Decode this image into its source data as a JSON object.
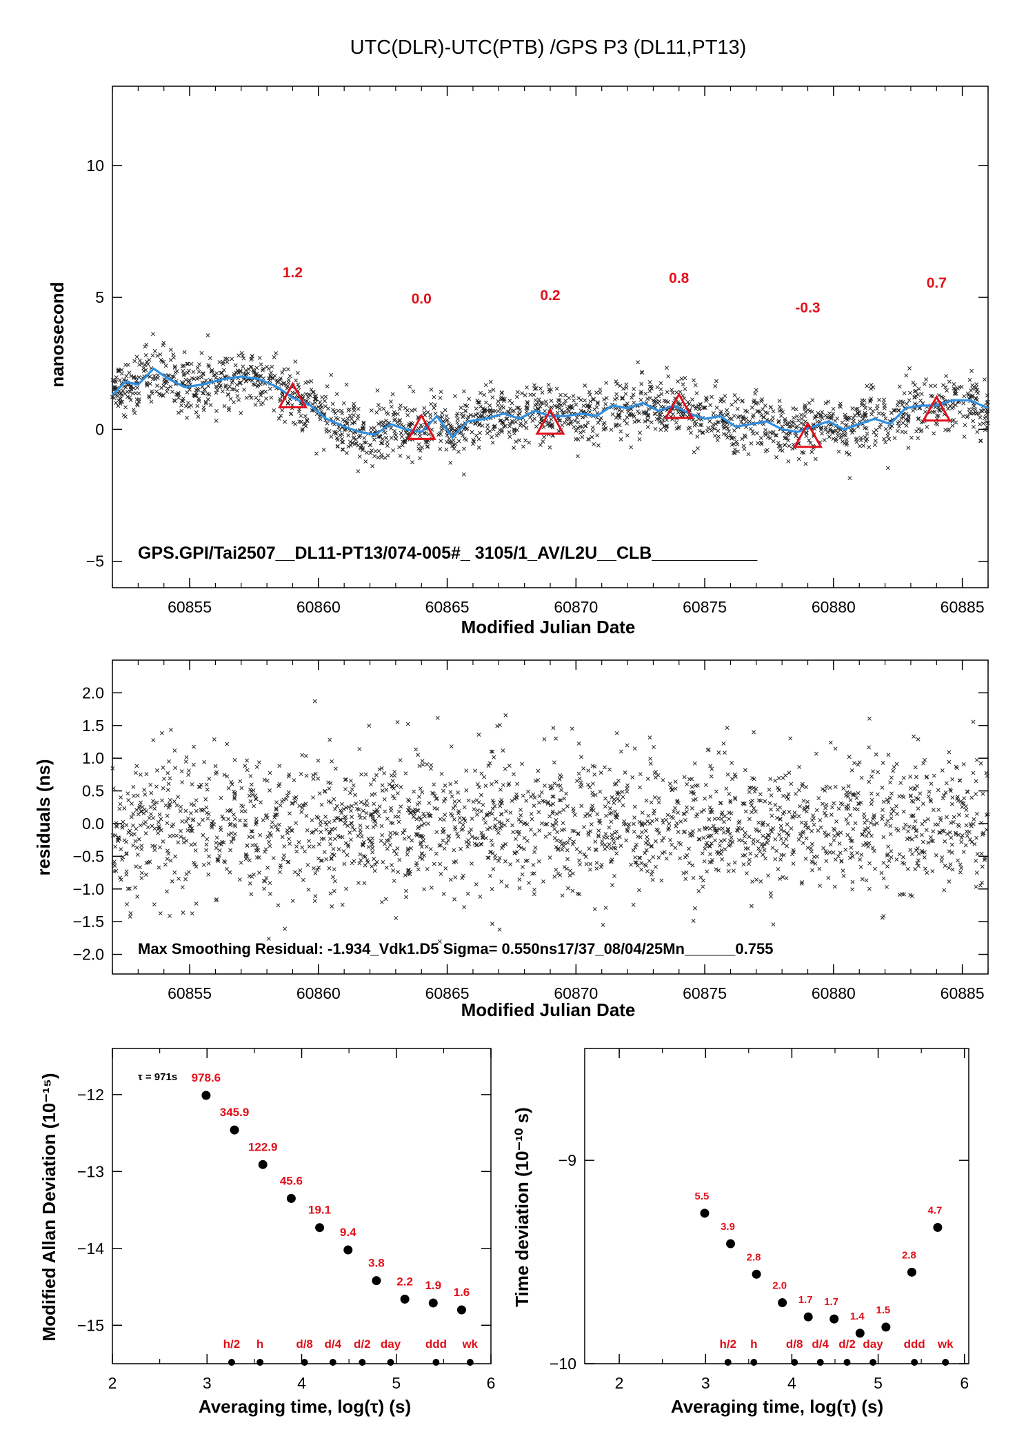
{
  "title": "UTC(DLR)-UTC(PTB)  /GPS  P3  (DL11,PT13)",
  "colors": {
    "smooth_line": "#2f8fe0",
    "marker": "#e0101a",
    "label_red": "#e0101a",
    "scatter": "#222222"
  },
  "chart_data": [
    {
      "id": "time_series",
      "type": "scatter",
      "xlabel": "Modified Julian Date",
      "ylabel": "nanosecond",
      "xlim": [
        60852,
        60886
      ],
      "ylim": [
        -6,
        13
      ],
      "xticks": [
        "60855",
        "60860",
        "60865",
        "60870",
        "60875",
        "60880",
        "60885"
      ],
      "yticks": [
        "−5",
        "0",
        "5",
        "10"
      ],
      "smooth_curve": [
        [
          60852,
          1.3
        ],
        [
          60852.5,
          1.8
        ],
        [
          60853,
          1.7
        ],
        [
          60853.6,
          2.3
        ],
        [
          60854.2,
          1.9
        ],
        [
          60854.8,
          1.6
        ],
        [
          60855.5,
          1.7
        ],
        [
          60856.3,
          1.9
        ],
        [
          60857,
          2.0
        ],
        [
          60857.7,
          1.9
        ],
        [
          60858.4,
          1.6
        ],
        [
          60859,
          1.2
        ],
        [
          60859.7,
          0.9
        ],
        [
          60860.3,
          0.4
        ],
        [
          60861,
          0.1
        ],
        [
          60861.6,
          -0.1
        ],
        [
          60862.2,
          -0.2
        ],
        [
          60862.8,
          0.2
        ],
        [
          60863.4,
          0.0
        ],
        [
          60864,
          -0.1
        ],
        [
          60864.6,
          0.5
        ],
        [
          60865.2,
          -0.3
        ],
        [
          60865.8,
          0.3
        ],
        [
          60866.5,
          0.4
        ],
        [
          60867.2,
          0.6
        ],
        [
          60867.8,
          0.4
        ],
        [
          60868.4,
          0.7
        ],
        [
          60869,
          0.5
        ],
        [
          60869.6,
          0.5
        ],
        [
          60870.2,
          0.6
        ],
        [
          60870.8,
          0.5
        ],
        [
          60871.4,
          0.9
        ],
        [
          60872,
          0.8
        ],
        [
          60872.6,
          1.0
        ],
        [
          60873.2,
          0.7
        ],
        [
          60873.8,
          0.9
        ],
        [
          60874.4,
          0.6
        ],
        [
          60875,
          0.4
        ],
        [
          60875.6,
          0.5
        ],
        [
          60876.2,
          0.1
        ],
        [
          60876.8,
          0.2
        ],
        [
          60877.4,
          0.3
        ],
        [
          60878,
          0.0
        ],
        [
          60878.6,
          -0.1
        ],
        [
          60879.2,
          0.1
        ],
        [
          60879.8,
          0.3
        ],
        [
          60880.4,
          0.0
        ],
        [
          60881,
          0.2
        ],
        [
          60881.6,
          0.4
        ],
        [
          60882.2,
          0.2
        ],
        [
          60882.8,
          0.8
        ],
        [
          60883.4,
          0.9
        ],
        [
          60884,
          0.9
        ],
        [
          60884.6,
          1.1
        ],
        [
          60885.3,
          1.1
        ],
        [
          60886,
          0.8
        ]
      ],
      "scatter_model": {
        "count": 2100,
        "spread_ns": 0.55
      },
      "markers": [
        {
          "x": 60859,
          "y": 1.2,
          "label": "1.2"
        },
        {
          "x": 60864,
          "y": 0.0,
          "label": "0.0"
        },
        {
          "x": 60869,
          "y": 0.2,
          "label": "0.2"
        },
        {
          "x": 60874,
          "y": 0.8,
          "label": "0.8"
        },
        {
          "x": 60879,
          "y": -0.3,
          "label": "-0.3"
        },
        {
          "x": 60884,
          "y": 0.7,
          "label": "0.7"
        }
      ],
      "annotation": "GPS.GPI/Tai2507__DL11-PT13/074-005#_  3105/1_AV/L2U__CLB___________"
    },
    {
      "id": "residuals",
      "type": "scatter",
      "xlabel": "Modified Julian Date",
      "ylabel": "residuals (ns)",
      "xlim": [
        60852,
        60886
      ],
      "ylim": [
        -2.3,
        2.5
      ],
      "xticks": [
        "60855",
        "60860",
        "60865",
        "60870",
        "60875",
        "60880",
        "60885"
      ],
      "yticks": [
        "2.0",
        "1.5",
        "1.0",
        "0.5",
        "0.0",
        "−0.5",
        "−1.0",
        "−1.5",
        "−2.0"
      ],
      "scatter_model": {
        "count": 2100,
        "sigma_ns": 0.55
      },
      "annotation": "Max Smoothing Residual: -1.934_Vdk1.D5  Sigma= 0.550ns17/37_08/04/25Mn______0.755"
    },
    {
      "id": "allan",
      "type": "scatter",
      "xlabel": "Averaging time, log(τ) (s)",
      "ylabel": "Modified Allan Deviation (10⁻¹⁵)",
      "xlim": [
        2,
        6
      ],
      "ylim": [
        -15.5,
        -11.4
      ],
      "xticks": [
        "2",
        "3",
        "4",
        "5",
        "6"
      ],
      "yticks": [
        "−12",
        "−13",
        "−14",
        "−15"
      ],
      "tau_note": "τ = 971s",
      "points": [
        {
          "x": 2.99,
          "y": -12.01,
          "label": "978.6"
        },
        {
          "x": 3.29,
          "y": -12.46,
          "label": "345.9"
        },
        {
          "x": 3.59,
          "y": -12.91,
          "label": "122.9"
        },
        {
          "x": 3.89,
          "y": -13.35,
          "label": "45.6"
        },
        {
          "x": 4.19,
          "y": -13.73,
          "label": "19.1"
        },
        {
          "x": 4.49,
          "y": -14.02,
          "label": "9.4"
        },
        {
          "x": 4.79,
          "y": -14.42,
          "label": "3.8"
        },
        {
          "x": 5.09,
          "y": -14.66,
          "label": "2.2"
        },
        {
          "x": 5.39,
          "y": -14.71,
          "label": "1.9"
        },
        {
          "x": 5.69,
          "y": -14.8,
          "label": "1.6"
        }
      ],
      "interval_markers": [
        {
          "x": 3.26,
          "label": "h/2"
        },
        {
          "x": 3.56,
          "label": "h"
        },
        {
          "x": 4.03,
          "label": "d/8"
        },
        {
          "x": 4.33,
          "label": "d/4"
        },
        {
          "x": 4.64,
          "label": "d/2"
        },
        {
          "x": 4.94,
          "label": "day"
        },
        {
          "x": 5.42,
          "label": "ddd"
        },
        {
          "x": 5.78,
          "label": "wk"
        }
      ]
    },
    {
      "id": "tdev",
      "type": "scatter",
      "xlabel": "Averaging time, log(τ) (s)",
      "ylabel": "Time deviation (10⁻¹⁰ s)",
      "xlim": [
        1.6,
        6.05
      ],
      "ylim": [
        -10,
        -8.45
      ],
      "xticks": [
        "2",
        "3",
        "4",
        "5",
        "6"
      ],
      "yticks": [
        "−9",
        "−10"
      ],
      "points": [
        {
          "x": 2.99,
          "y": -9.26,
          "label": "5.5"
        },
        {
          "x": 3.29,
          "y": -9.41,
          "label": "3.9"
        },
        {
          "x": 3.59,
          "y": -9.56,
          "label": "2.8"
        },
        {
          "x": 3.89,
          "y": -9.7,
          "label": "2.0"
        },
        {
          "x": 4.19,
          "y": -9.77,
          "label": "1.7"
        },
        {
          "x": 4.49,
          "y": -9.78,
          "label": "1.7"
        },
        {
          "x": 4.79,
          "y": -9.85,
          "label": "1.4"
        },
        {
          "x": 5.09,
          "y": -9.82,
          "label": "1.5"
        },
        {
          "x": 5.39,
          "y": -9.55,
          "label": "2.8"
        },
        {
          "x": 5.69,
          "y": -9.33,
          "label": "4.7"
        }
      ],
      "interval_markers": [
        {
          "x": 3.26,
          "label": "h/2"
        },
        {
          "x": 3.56,
          "label": "h"
        },
        {
          "x": 4.03,
          "label": "d/8"
        },
        {
          "x": 4.33,
          "label": "d/4"
        },
        {
          "x": 4.64,
          "label": "d/2"
        },
        {
          "x": 4.94,
          "label": "day"
        },
        {
          "x": 5.42,
          "label": "ddd"
        },
        {
          "x": 5.78,
          "label": "wk"
        }
      ]
    }
  ]
}
